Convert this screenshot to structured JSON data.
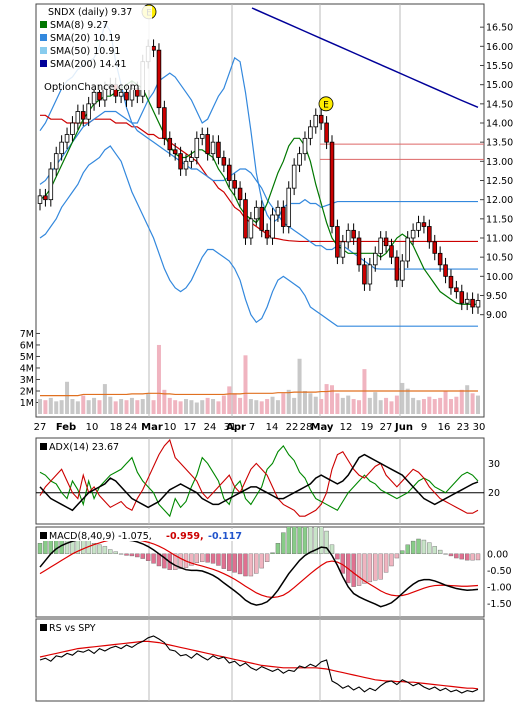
{
  "chart_data": [
    {
      "type": "candlestick",
      "panel": "price",
      "legend": [
        {
          "label": "SNDX (daily) 9.37",
          "color": "#000000"
        },
        {
          "label": "SMA(8) 9.27",
          "color": "#007700"
        },
        {
          "label": "SMA(20) 10.19",
          "color": "#3388dd"
        },
        {
          "label": "SMA(50) 10.91",
          "color": "#cc0000"
        },
        {
          "label": "SMA(200) 14.41",
          "color": "#000099"
        }
      ],
      "watermark": "OptionChance.com",
      "earnings_marker": "E",
      "yticks": [
        "16.50",
        "16.00",
        "15.50",
        "15.00",
        "14.50",
        "14.00",
        "13.50",
        "13.00",
        "12.50",
        "12.00",
        "11.50",
        "11.00",
        "10.50",
        "10.00",
        "9.50",
        "9.00"
      ],
      "ylim": [
        8.6,
        17.0
      ],
      "xticks": [
        "27",
        "Feb",
        "10",
        "18",
        "24",
        "Mar",
        "10",
        "17",
        "24",
        "31",
        "Apr",
        "7",
        "14",
        "22",
        "28",
        "May",
        "12",
        "19",
        "27",
        "Jun",
        "9",
        "16",
        "23",
        "30"
      ],
      "close": [
        12.1,
        12.0,
        12.8,
        13.2,
        13.5,
        13.7,
        14.0,
        14.3,
        14.1,
        14.5,
        14.8,
        14.6,
        14.9,
        15.0,
        14.7,
        14.8,
        14.6,
        14.9,
        14.7,
        15.6,
        16.0,
        15.9,
        14.4,
        13.6,
        13.3,
        13.2,
        12.8,
        13.0,
        13.1,
        13.6,
        13.7,
        13.2,
        13.5,
        13.1,
        12.9,
        12.5,
        12.3,
        12.0,
        11.0,
        11.5,
        11.8,
        11.2,
        11.0,
        11.6,
        11.8,
        11.3,
        12.3,
        12.9,
        13.2,
        13.6,
        13.9,
        14.2,
        14.0,
        13.5,
        11.3,
        10.5,
        10.9,
        11.2,
        11.0,
        10.3,
        9.8,
        10.3,
        10.6,
        11.0,
        10.8,
        10.5,
        9.9,
        10.4,
        11.0,
        11.2,
        11.4,
        11.3,
        10.9,
        10.6,
        10.3,
        10.0,
        9.7,
        9.6,
        9.3,
        9.4,
        9.2,
        9.37
      ],
      "sma8": [
        12.0,
        12.1,
        12.3,
        12.6,
        12.9,
        13.2,
        13.5,
        13.8,
        14.1,
        14.3,
        14.5,
        14.6,
        14.7,
        14.7,
        14.8,
        14.9,
        15.0,
        15.1,
        15.0,
        14.9,
        14.6,
        14.3,
        14.0,
        13.7,
        13.4,
        13.2,
        13.1,
        13.1,
        13.2,
        13.3,
        13.3,
        13.2,
        13.1,
        12.8,
        12.6,
        12.3,
        12.1,
        11.8,
        11.6,
        11.5,
        11.4,
        11.6,
        11.9,
        12.3,
        12.7,
        13.0,
        13.4,
        13.6,
        13.6,
        13.4,
        13.0,
        12.4,
        11.9,
        11.4,
        11.0,
        10.8,
        10.7,
        10.6,
        10.6,
        10.6,
        10.6,
        10.6,
        10.6,
        10.5,
        10.6,
        10.8,
        11.0,
        11.1,
        11.0,
        10.8,
        10.5,
        10.2,
        10.0,
        9.8,
        9.6,
        9.5,
        9.4,
        9.3,
        9.27,
        9.27,
        9.27,
        9.27
      ],
      "sma20": [
        12.4,
        12.5,
        12.7,
        12.9,
        13.1,
        13.3,
        13.5,
        13.7,
        13.9,
        14.0,
        14.1,
        14.2,
        14.3,
        14.3,
        14.3,
        14.2,
        14.1,
        14.0,
        13.8,
        13.7,
        13.6,
        13.5,
        13.4,
        13.3,
        13.2,
        13.1,
        13.0,
        12.9,
        12.8,
        12.8,
        12.7,
        12.6,
        12.5,
        12.5,
        12.5,
        12.6,
        12.7,
        12.8,
        12.8,
        12.7,
        12.5,
        12.3,
        12.0,
        11.8,
        11.6,
        11.4,
        11.3,
        11.2,
        11.1,
        11.0,
        10.9,
        10.8,
        10.8,
        10.7,
        10.7,
        10.8,
        10.8,
        10.7,
        10.6,
        10.5,
        10.4,
        10.3,
        10.2,
        10.19,
        10.19,
        10.19,
        10.19,
        10.19,
        10.19,
        10.19,
        10.19,
        10.19,
        10.19,
        10.19,
        10.19,
        10.19,
        10.19,
        10.19,
        10.19,
        10.19,
        10.19,
        10.19
      ],
      "sma50": [
        14.2,
        14.2,
        14.1,
        14.1,
        14.1,
        14.0,
        14.0,
        14.0,
        14.0,
        14.0,
        14.1,
        14.1,
        14.1,
        14.1,
        14.0,
        14.0,
        14.0,
        13.9,
        13.9,
        13.8,
        13.7,
        13.7,
        13.6,
        13.6,
        13.5,
        13.4,
        13.3,
        13.2,
        13.1,
        13.0,
        12.8,
        12.6,
        12.5,
        12.3,
        12.2,
        12.0,
        11.8,
        11.7,
        11.5,
        11.4,
        11.3,
        11.2,
        11.1,
        11.0,
        10.98,
        10.95,
        10.93,
        10.92,
        10.91,
        10.91,
        10.91,
        10.91,
        10.91,
        10.91,
        10.91,
        10.91,
        10.91,
        10.91,
        10.91,
        10.91,
        10.91,
        10.91,
        10.91,
        10.91,
        10.91,
        10.91,
        10.91,
        10.91,
        10.91,
        10.91,
        10.91,
        10.91,
        10.91,
        10.91,
        10.91,
        10.91,
        10.91,
        10.91,
        10.91,
        10.91,
        10.91,
        10.91
      ],
      "sma200": [
        17.0,
        16.8,
        16.6,
        16.4,
        16.2,
        16.0,
        15.8,
        15.6,
        15.4,
        15.2,
        15.0,
        14.8,
        14.6,
        14.41
      ],
      "upper_band": [
        13.8,
        14.0,
        14.3,
        14.6,
        14.9,
        15.1,
        15.2,
        15.4,
        15.5,
        15.6,
        15.7,
        16.0,
        16.6,
        16.4,
        15.6,
        15.0,
        14.4,
        14.0,
        14.0,
        14.3,
        14.6,
        14.8,
        15.1,
        15.2,
        15.3,
        15.2,
        15.0,
        14.8,
        14.6,
        14.3,
        14.0,
        14.1,
        14.4,
        14.7,
        14.9,
        15.3,
        15.7,
        15.6,
        14.8,
        13.8,
        12.7,
        12.0,
        11.6,
        11.4,
        11.5,
        11.8,
        11.9,
        11.9,
        11.9,
        12.0,
        11.9,
        11.9,
        11.8,
        11.85,
        11.9,
        11.95,
        11.95,
        11.95,
        11.95,
        11.95,
        11.95,
        11.95,
        11.95,
        11.95,
        11.95,
        11.95,
        11.95,
        11.95,
        11.95,
        11.95,
        11.95,
        11.95,
        11.95,
        11.95,
        11.95,
        11.95,
        11.95,
        11.95,
        11.95,
        11.95,
        11.95,
        11.95
      ],
      "lower_band": [
        11.0,
        11.1,
        11.3,
        11.5,
        11.8,
        12.0,
        12.2,
        12.4,
        12.7,
        12.9,
        13.0,
        13.1,
        13.3,
        13.4,
        13.2,
        13.0,
        12.6,
        12.2,
        11.9,
        11.6,
        11.3,
        11.0,
        10.6,
        10.2,
        9.9,
        9.7,
        9.6,
        9.7,
        9.9,
        10.2,
        10.5,
        10.7,
        10.7,
        10.6,
        10.5,
        10.4,
        10.2,
        9.9,
        9.4,
        9.0,
        8.8,
        8.9,
        9.2,
        9.6,
        9.9,
        10.0,
        9.9,
        9.8,
        9.7,
        9.5,
        9.2,
        9.1,
        9.0,
        8.9,
        8.8,
        8.7,
        8.7,
        8.7,
        8.7,
        8.7,
        8.7,
        8.7,
        8.7,
        8.7,
        8.7,
        8.7,
        8.7,
        8.7,
        8.7,
        8.7,
        8.7,
        8.7,
        8.7,
        8.7,
        8.7,
        8.7,
        8.7,
        8.7,
        8.7,
        8.7,
        8.7,
        8.7
      ],
      "hlines": [
        13.45,
        13.05
      ]
    },
    {
      "type": "bar",
      "panel": "volume",
      "yticks": [
        "7M",
        "6M",
        "5M",
        "4M",
        "3M",
        "2M",
        "1M"
      ],
      "ylim": [
        0,
        7.3
      ],
      "values": [
        1.3,
        1.2,
        1.4,
        1.1,
        1.2,
        2.8,
        1.3,
        1.1,
        1.6,
        1.2,
        1.4,
        1.2,
        2.6,
        1.5,
        1.1,
        1.3,
        1.2,
        1.4,
        1.2,
        1.3,
        1.8,
        1.2,
        6.0,
        2.1,
        1.4,
        1.2,
        1.1,
        1.3,
        1.2,
        1.0,
        1.2,
        1.4,
        1.3,
        1.1,
        1.6,
        2.4,
        1.8,
        1.4,
        5.1,
        1.3,
        1.2,
        1.1,
        1.3,
        1.5,
        1.2,
        1.8,
        2.1,
        1.4,
        4.8,
        2.0,
        1.8,
        1.5,
        1.3,
        2.6,
        2.5,
        1.8,
        1.4,
        1.6,
        1.3,
        1.2,
        3.9,
        1.4,
        1.9,
        1.2,
        1.4,
        1.1,
        1.6,
        2.7,
        2.2,
        1.4,
        1.2,
        1.3,
        1.5,
        1.3,
        1.4,
        2.0,
        1.3,
        1.5,
        2.1,
        2.5,
        1.8,
        1.6
      ],
      "avg": [
        1.6,
        1.6,
        1.6,
        1.6,
        1.6,
        1.6,
        1.6,
        1.6,
        1.7,
        1.7,
        1.7,
        1.7,
        1.7,
        1.7,
        1.7,
        1.7,
        1.7,
        1.75,
        1.75,
        1.75,
        1.8,
        1.8,
        1.8,
        1.75,
        1.75,
        1.7,
        1.7,
        1.7,
        1.7,
        1.7,
        1.7,
        1.7,
        1.7,
        1.7,
        1.7,
        1.75,
        1.75,
        1.75,
        1.8,
        1.8,
        1.8,
        1.8,
        1.8,
        1.8,
        1.85,
        1.85,
        1.85,
        1.9,
        1.9,
        1.9,
        1.9,
        1.9,
        1.95,
        1.95,
        2.0,
        2.0,
        2.0,
        2.0,
        2.0,
        2.0,
        2.0,
        2.0,
        2.0,
        2.0,
        2.0,
        2.0,
        2.0,
        2.0,
        2.0,
        2.0,
        2.0,
        2.0,
        2.0,
        2.0,
        2.0,
        2.0,
        2.0,
        2.0,
        2.0,
        2.0,
        2.0,
        2.0
      ]
    },
    {
      "type": "line",
      "panel": "adx",
      "title": "ADX(14) 23.67",
      "yticks": [
        "30",
        "20"
      ],
      "ylim": [
        10,
        38
      ],
      "adx": [
        22,
        20,
        18,
        17,
        16,
        15,
        14,
        16,
        18,
        20,
        21,
        22,
        23,
        25,
        24,
        22,
        20,
        18,
        17,
        16,
        15,
        16,
        17,
        19,
        21,
        22,
        23,
        22,
        21,
        20,
        18,
        17,
        16,
        16,
        17,
        18,
        19,
        20,
        21,
        22,
        22,
        21,
        20,
        19,
        18,
        18,
        19,
        20,
        21,
        22,
        23,
        25,
        26,
        25,
        24,
        23,
        24,
        26,
        29,
        32,
        33,
        32,
        31,
        30,
        29,
        28,
        27,
        26,
        24,
        22,
        20,
        18,
        17,
        16,
        17,
        18,
        19,
        20,
        21,
        22,
        23,
        23.67
      ],
      "plus_di": [
        27,
        26,
        24,
        23,
        20,
        18,
        24,
        21,
        16,
        24,
        18,
        22,
        24,
        26,
        27,
        28,
        30,
        32,
        27,
        24,
        22,
        20,
        16,
        14,
        12,
        18,
        15,
        17,
        22,
        26,
        32,
        30,
        27,
        24,
        18,
        16,
        22,
        24,
        18,
        16,
        19,
        22,
        28,
        30,
        34,
        36,
        33,
        31,
        27,
        25,
        21,
        18,
        17,
        16,
        15,
        14,
        17,
        20,
        22,
        24,
        26,
        24,
        23,
        21,
        20,
        19,
        18,
        19,
        20,
        22,
        24,
        25,
        24,
        22,
        21,
        20,
        22,
        24,
        26,
        27,
        26,
        24
      ],
      "minus_di": [
        19,
        22,
        24,
        26,
        28,
        24,
        20,
        18,
        26,
        20,
        22,
        19,
        17,
        15,
        16,
        17,
        15,
        14,
        18,
        21,
        25,
        29,
        33,
        36,
        38,
        32,
        30,
        28,
        26,
        24,
        20,
        18,
        20,
        22,
        24,
        26,
        22,
        20,
        24,
        28,
        30,
        28,
        26,
        22,
        18,
        16,
        15,
        14,
        12,
        12,
        13,
        14,
        16,
        20,
        28,
        33,
        34,
        31,
        28,
        26,
        25,
        27,
        29,
        30,
        26,
        24,
        22,
        24,
        26,
        28,
        27,
        25,
        22,
        20,
        18,
        17,
        16,
        15,
        14,
        13,
        13,
        14
      ]
    },
    {
      "type": "histogram_line",
      "panel": "macd",
      "title": "MACD(8,40,9) -1.075,",
      "signal_label": "-0.959,",
      "hist_label": "-0.117",
      "yticks": [
        "0.00",
        "-0.50",
        "-1.00",
        "-1.50"
      ],
      "ylim": [
        -1.85,
        0.75
      ],
      "macd": [
        -0.4,
        -0.2,
        0.0,
        0.15,
        0.25,
        0.32,
        0.38,
        0.42,
        0.45,
        0.47,
        0.48,
        0.5,
        0.52,
        0.5,
        0.48,
        0.45,
        0.42,
        0.4,
        0.36,
        0.3,
        0.22,
        0.12,
        0.0,
        -0.12,
        -0.25,
        -0.35,
        -0.42,
        -0.48,
        -0.5,
        -0.5,
        -0.52,
        -0.58,
        -0.65,
        -0.75,
        -0.88,
        -1.0,
        -1.12,
        -1.25,
        -1.4,
        -1.5,
        -1.55,
        -1.52,
        -1.45,
        -1.3,
        -1.1,
        -0.85,
        -0.6,
        -0.4,
        -0.2,
        -0.05,
        0.05,
        0.12,
        0.2,
        0.18,
        -0.05,
        -0.35,
        -0.7,
        -1.0,
        -1.2,
        -1.3,
        -1.38,
        -1.45,
        -1.52,
        -1.6,
        -1.55,
        -1.48,
        -1.35,
        -1.2,
        -1.05,
        -0.92,
        -0.82,
        -0.78,
        -0.78,
        -0.82,
        -0.88,
        -0.95,
        -1.0,
        -1.05,
        -1.08,
        -1.1,
        -1.09,
        -1.075
      ],
      "signal": [
        -0.6,
        -0.5,
        -0.4,
        -0.3,
        -0.2,
        -0.1,
        0.0,
        0.08,
        0.15,
        0.22,
        0.28,
        0.33,
        0.38,
        0.42,
        0.44,
        0.45,
        0.45,
        0.44,
        0.42,
        0.39,
        0.35,
        0.3,
        0.23,
        0.15,
        0.05,
        -0.05,
        -0.14,
        -0.22,
        -0.28,
        -0.33,
        -0.37,
        -0.42,
        -0.47,
        -0.53,
        -0.6,
        -0.68,
        -0.77,
        -0.87,
        -0.98,
        -1.08,
        -1.18,
        -1.25,
        -1.3,
        -1.32,
        -1.3,
        -1.25,
        -1.15,
        -1.02,
        -0.88,
        -0.74,
        -0.6,
        -0.47,
        -0.35,
        -0.25,
        -0.22,
        -0.25,
        -0.33,
        -0.45,
        -0.58,
        -0.7,
        -0.82,
        -0.92,
        -1.02,
        -1.12,
        -1.2,
        -1.25,
        -1.27,
        -1.26,
        -1.22,
        -1.16,
        -1.1,
        -1.04,
        -0.99,
        -0.96,
        -0.95,
        -0.95,
        -0.96,
        -0.97,
        -0.98,
        -0.98,
        -0.97,
        -0.959
      ]
    },
    {
      "type": "line",
      "panel": "rs",
      "title": "RS vs SPY",
      "rs": [
        0.55,
        0.58,
        0.53,
        0.62,
        0.6,
        0.66,
        0.63,
        0.7,
        0.68,
        0.72,
        0.66,
        0.74,
        0.7,
        0.75,
        0.78,
        0.74,
        0.8,
        0.76,
        0.82,
        0.86,
        0.92,
        0.95,
        0.9,
        0.84,
        0.72,
        0.7,
        0.62,
        0.64,
        0.58,
        0.66,
        0.6,
        0.55,
        0.62,
        0.57,
        0.6,
        0.5,
        0.53,
        0.45,
        0.5,
        0.42,
        0.38,
        0.44,
        0.4,
        0.36,
        0.4,
        0.33,
        0.38,
        0.36,
        0.45,
        0.42,
        0.48,
        0.44,
        0.52,
        0.55,
        0.2,
        0.15,
        0.08,
        0.12,
        0.05,
        0.1,
        0.02,
        0.08,
        0.04,
        0.12,
        0.18,
        0.2,
        0.14,
        0.22,
        0.18,
        0.12,
        0.16,
        0.1,
        0.06,
        0.1,
        0.04,
        0.08,
        0.02,
        0.05,
        0.0,
        0.04,
        0.02,
        0.06
      ],
      "rs_ma": [
        0.6,
        0.62,
        0.64,
        0.66,
        0.68,
        0.7,
        0.72,
        0.74,
        0.75,
        0.76,
        0.77,
        0.78,
        0.79,
        0.8,
        0.81,
        0.82,
        0.83,
        0.84,
        0.85,
        0.86,
        0.86,
        0.85,
        0.84,
        0.82,
        0.8,
        0.78,
        0.76,
        0.74,
        0.72,
        0.7,
        0.68,
        0.66,
        0.64,
        0.62,
        0.6,
        0.58,
        0.56,
        0.54,
        0.52,
        0.5,
        0.48,
        0.46,
        0.45,
        0.44,
        0.43,
        0.42,
        0.42,
        0.42,
        0.42,
        0.42,
        0.42,
        0.42,
        0.41,
        0.4,
        0.38,
        0.36,
        0.34,
        0.32,
        0.3,
        0.28,
        0.26,
        0.24,
        0.22,
        0.21,
        0.2,
        0.2,
        0.19,
        0.19,
        0.18,
        0.18,
        0.17,
        0.16,
        0.15,
        0.14,
        0.13,
        0.12,
        0.11,
        0.1,
        0.09,
        0.08,
        0.08,
        0.07
      ]
    }
  ]
}
